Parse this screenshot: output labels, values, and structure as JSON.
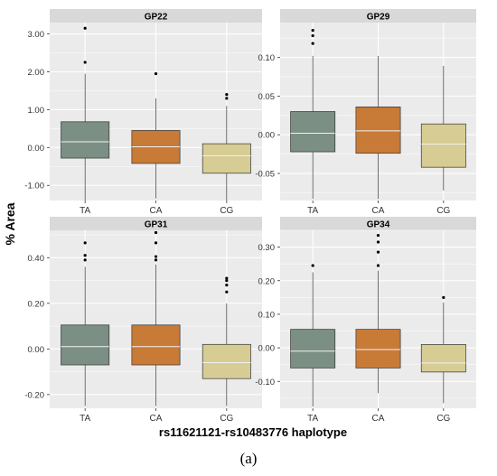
{
  "figure": {
    "ylabel": "% Area",
    "xlabel": "rs11621121-rs10483776 haplotype",
    "caption": "(a)"
  },
  "colors": {
    "panel_bg": "#ebebeb",
    "strip_bg": "#d9d9d9",
    "grid": "#ffffff",
    "TA": "#7b8f84",
    "CA": "#c87a37",
    "CG": "#d6cc94"
  },
  "chart_data": [
    {
      "type": "box",
      "title": "GP22",
      "categories": [
        "TA",
        "CA",
        "CG"
      ],
      "ylim": [
        -1.4,
        3.3
      ],
      "yticks": [
        -1.0,
        0.0,
        1.0,
        2.0,
        3.0
      ],
      "ytick_labels": [
        "-1.00",
        "0.00",
        "1.00",
        "2.00",
        "3.00"
      ],
      "boxes": [
        {
          "category": "TA",
          "min": -1.4,
          "q1": -0.28,
          "median": 0.15,
          "q3": 0.68,
          "max": 1.95,
          "outliers": [
            2.25,
            3.15
          ]
        },
        {
          "category": "CA",
          "min": -1.35,
          "q1": -0.42,
          "median": 0.02,
          "q3": 0.45,
          "max": 1.3,
          "outliers": [
            1.95
          ]
        },
        {
          "category": "CG",
          "min": -1.4,
          "q1": -0.68,
          "median": -0.22,
          "q3": 0.1,
          "max": 1.1,
          "outliers": [
            1.3,
            1.4
          ]
        }
      ]
    },
    {
      "type": "box",
      "title": "GP29",
      "categories": [
        "TA",
        "CA",
        "CG"
      ],
      "ylim": [
        -0.085,
        0.145
      ],
      "yticks": [
        -0.05,
        0.0,
        0.05,
        0.1
      ],
      "ytick_labels": [
        "-0.05",
        "0.00",
        "0.05",
        "0.10"
      ],
      "boxes": [
        {
          "category": "TA",
          "min": -0.083,
          "q1": -0.022,
          "median": 0.002,
          "q3": 0.03,
          "max": 0.102,
          "outliers": [
            0.118,
            0.128,
            0.135
          ]
        },
        {
          "category": "CA",
          "min": -0.083,
          "q1": -0.024,
          "median": 0.005,
          "q3": 0.036,
          "max": 0.102,
          "outliers": []
        },
        {
          "category": "CG",
          "min": -0.072,
          "q1": -0.042,
          "median": -0.012,
          "q3": 0.014,
          "max": 0.089,
          "outliers": []
        }
      ]
    },
    {
      "type": "box",
      "title": "GP31",
      "categories": [
        "TA",
        "CA",
        "CG"
      ],
      "ylim": [
        -0.26,
        0.52
      ],
      "yticks": [
        -0.2,
        0.0,
        0.2,
        0.4
      ],
      "ytick_labels": [
        "-0.20",
        "0.00",
        "0.20",
        "0.40"
      ],
      "boxes": [
        {
          "category": "TA",
          "min": -0.25,
          "q1": -0.07,
          "median": 0.01,
          "q3": 0.105,
          "max": 0.36,
          "outliers": [
            0.39,
            0.41,
            0.465
          ]
        },
        {
          "category": "CA",
          "min": -0.25,
          "q1": -0.07,
          "median": 0.01,
          "q3": 0.105,
          "max": 0.37,
          "outliers": [
            0.39,
            0.405,
            0.465,
            0.51
          ]
        },
        {
          "category": "CG",
          "min": -0.25,
          "q1": -0.13,
          "median": -0.06,
          "q3": 0.02,
          "max": 0.2,
          "outliers": [
            0.25,
            0.28,
            0.3,
            0.31
          ]
        }
      ]
    },
    {
      "type": "box",
      "title": "GP34",
      "categories": [
        "TA",
        "CA",
        "CG"
      ],
      "ylim": [
        -0.18,
        0.35
      ],
      "yticks": [
        -0.1,
        0.0,
        0.1,
        0.2,
        0.3
      ],
      "ytick_labels": [
        "-0.10",
        "0.00",
        "0.10",
        "0.20",
        "0.30"
      ],
      "boxes": [
        {
          "category": "TA",
          "min": -0.175,
          "q1": -0.06,
          "median": -0.01,
          "q3": 0.055,
          "max": 0.225,
          "outliers": [
            0.245
          ]
        },
        {
          "category": "CA",
          "min": -0.135,
          "q1": -0.06,
          "median": -0.005,
          "q3": 0.055,
          "max": 0.23,
          "outliers": [
            0.245,
            0.285,
            0.315,
            0.335
          ]
        },
        {
          "category": "CG",
          "min": -0.165,
          "q1": -0.072,
          "median": -0.045,
          "q3": 0.01,
          "max": 0.135,
          "outliers": [
            0.15
          ]
        }
      ]
    }
  ]
}
